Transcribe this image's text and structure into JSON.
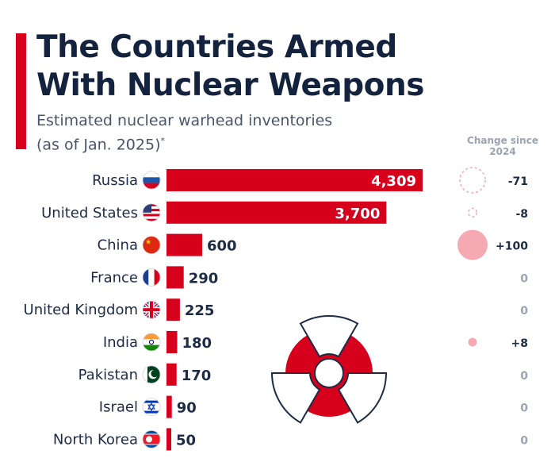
{
  "header": {
    "title": "The Countries Armed\nWith Nuclear Weapons",
    "subtitle": "Estimated nuclear warhead inventories\n(as of Jan. 2025)",
    "subtitle_mark": "*"
  },
  "colors": {
    "accent": "#d6001c",
    "bar": "#d6001c",
    "label": "#1d2b44",
    "zero_change": "#9aa4b2",
    "bubble": "#f5a9b2"
  },
  "chart_data": {
    "type": "bar",
    "orientation": "horizontal",
    "title": "The Countries Armed With Nuclear Weapons",
    "subtitle": "Estimated nuclear warhead inventories (as of Jan. 2025)",
    "categories": [
      "Russia",
      "United States",
      "China",
      "France",
      "United Kingdom",
      "India",
      "Pakistan",
      "Israel",
      "North Korea"
    ],
    "values": [
      4309,
      3700,
      600,
      290,
      225,
      180,
      170,
      90,
      50
    ],
    "value_labels": [
      "4,309",
      "3,700",
      "600",
      "290",
      "225",
      "180",
      "170",
      "90",
      "50"
    ],
    "flags": [
      "russia-flag-icon",
      "us-flag-icon",
      "china-flag-icon",
      "france-flag-icon",
      "uk-flag-icon",
      "india-flag-icon",
      "pakistan-flag-icon",
      "israel-flag-icon",
      "north-korea-flag-icon"
    ],
    "xlim": [
      0,
      4309
    ],
    "change_header": "Change since\n2024",
    "change_values": [
      -71,
      -8,
      100,
      0,
      0,
      8,
      0,
      0,
      0
    ],
    "change_labels": [
      "-71",
      "-8",
      "+100",
      "0",
      "0",
      "+8",
      "0",
      "0",
      "0"
    ]
  },
  "decor": {
    "icon": "radiation-icon"
  }
}
